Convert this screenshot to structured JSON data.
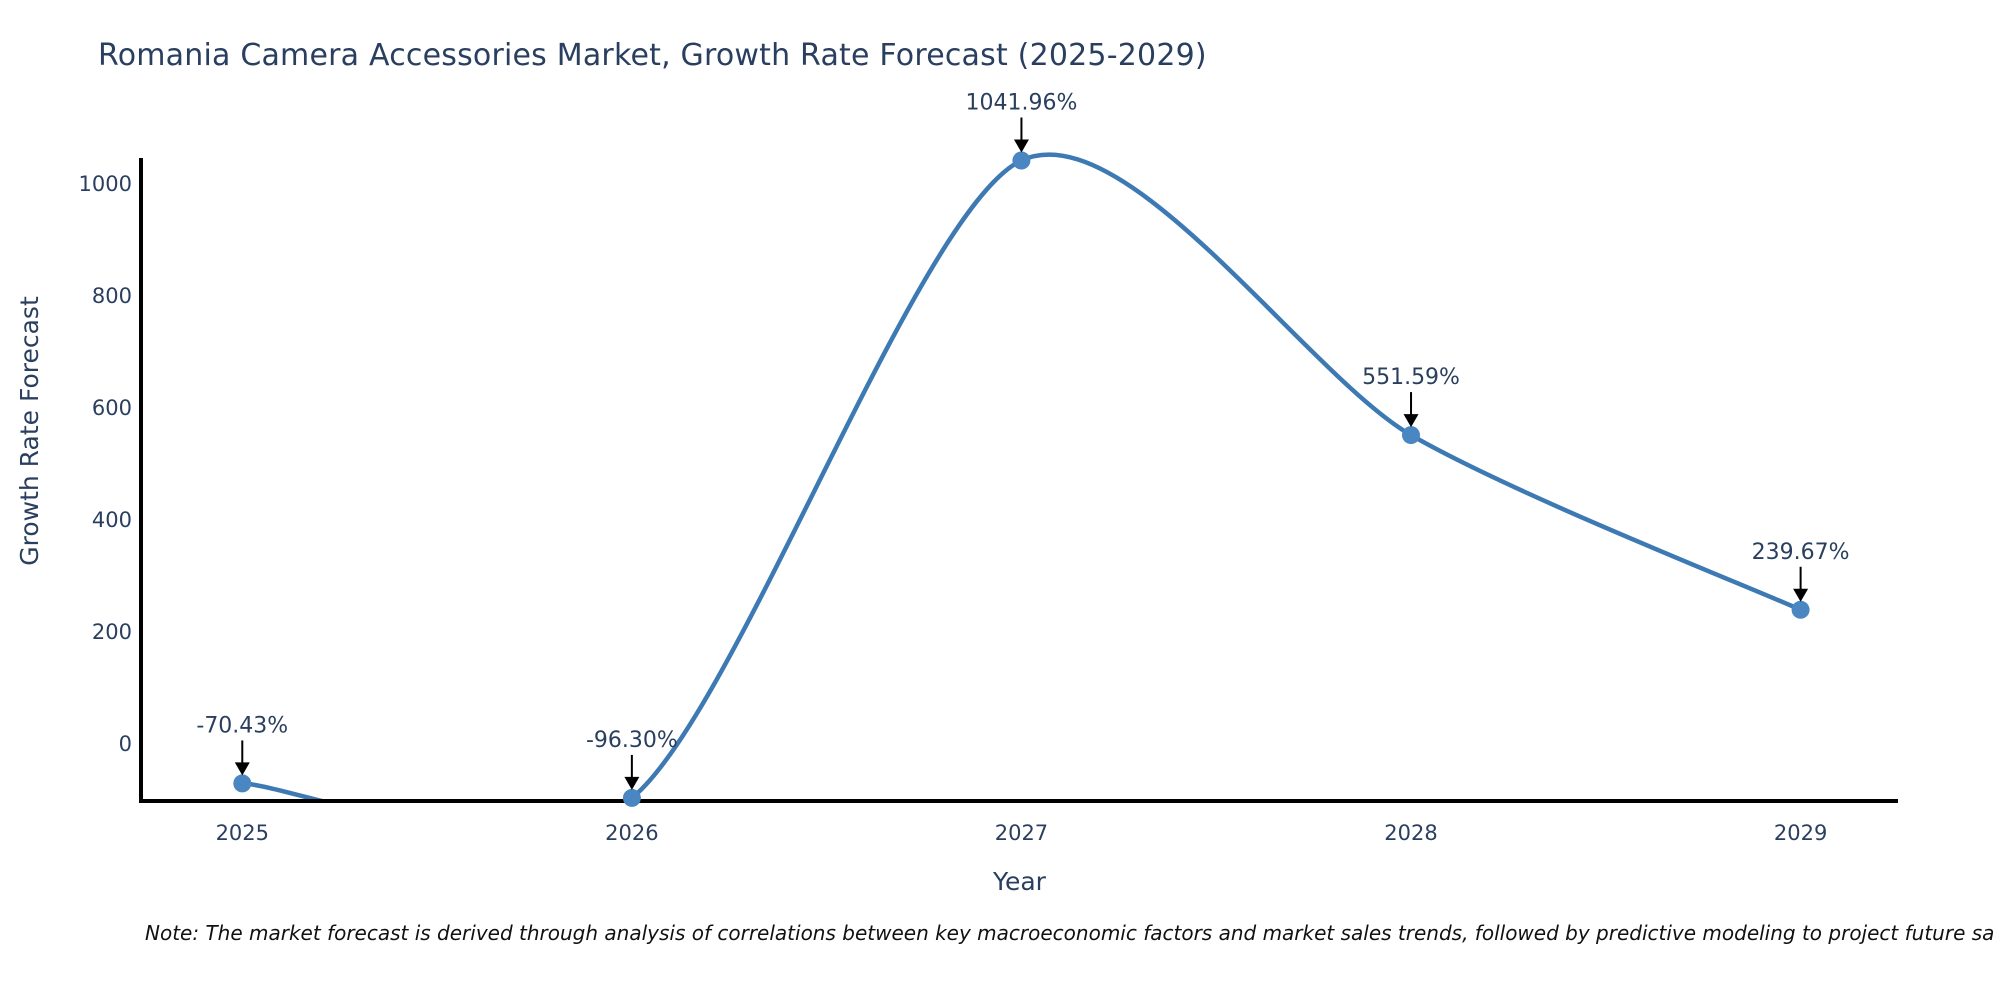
{
  "title": "Romania Camera Accessories Market, Growth Rate Forecast (2025-2029)",
  "note": "Note: The market forecast is derived through analysis of correlations between key macroeconomic factors and market sales trends, followed by predictive modeling to project future sa",
  "chart_data": {
    "type": "line",
    "title": "Romania Camera Accessories Market, Growth Rate Forecast (2025-2029)",
    "xlabel": "Year",
    "ylabel": "Growth Rate Forecast",
    "x": [
      2025,
      2026,
      2027,
      2028,
      2029
    ],
    "x_tick_labels": [
      "2025",
      "2026",
      "2027",
      "2028",
      "2029"
    ],
    "series": [
      {
        "name": "Growth Rate Forecast",
        "values": [
          -70.43,
          -96.3,
          1041.96,
          551.59,
          239.67
        ]
      }
    ],
    "point_labels": [
      "-70.43%",
      "-96.30%",
      "1041.96%",
      "551.59%",
      "239.67%"
    ],
    "yticks": [
      0,
      200,
      400,
      600,
      800,
      1000
    ],
    "ylim": [
      -101.8,
      1046.4
    ],
    "xlim": [
      2024.74,
      2029.25
    ],
    "line_shape": "spline",
    "markers": true,
    "grid": false,
    "legend": "none",
    "annotation_arrows": true,
    "colors": {
      "line": "#3d79b3",
      "marker": "#4a87c2",
      "axis_line": "#000000",
      "arrow": "#000000",
      "text": "#2a3f5f",
      "note_text": "#111111",
      "background": "#ffffff"
    }
  }
}
